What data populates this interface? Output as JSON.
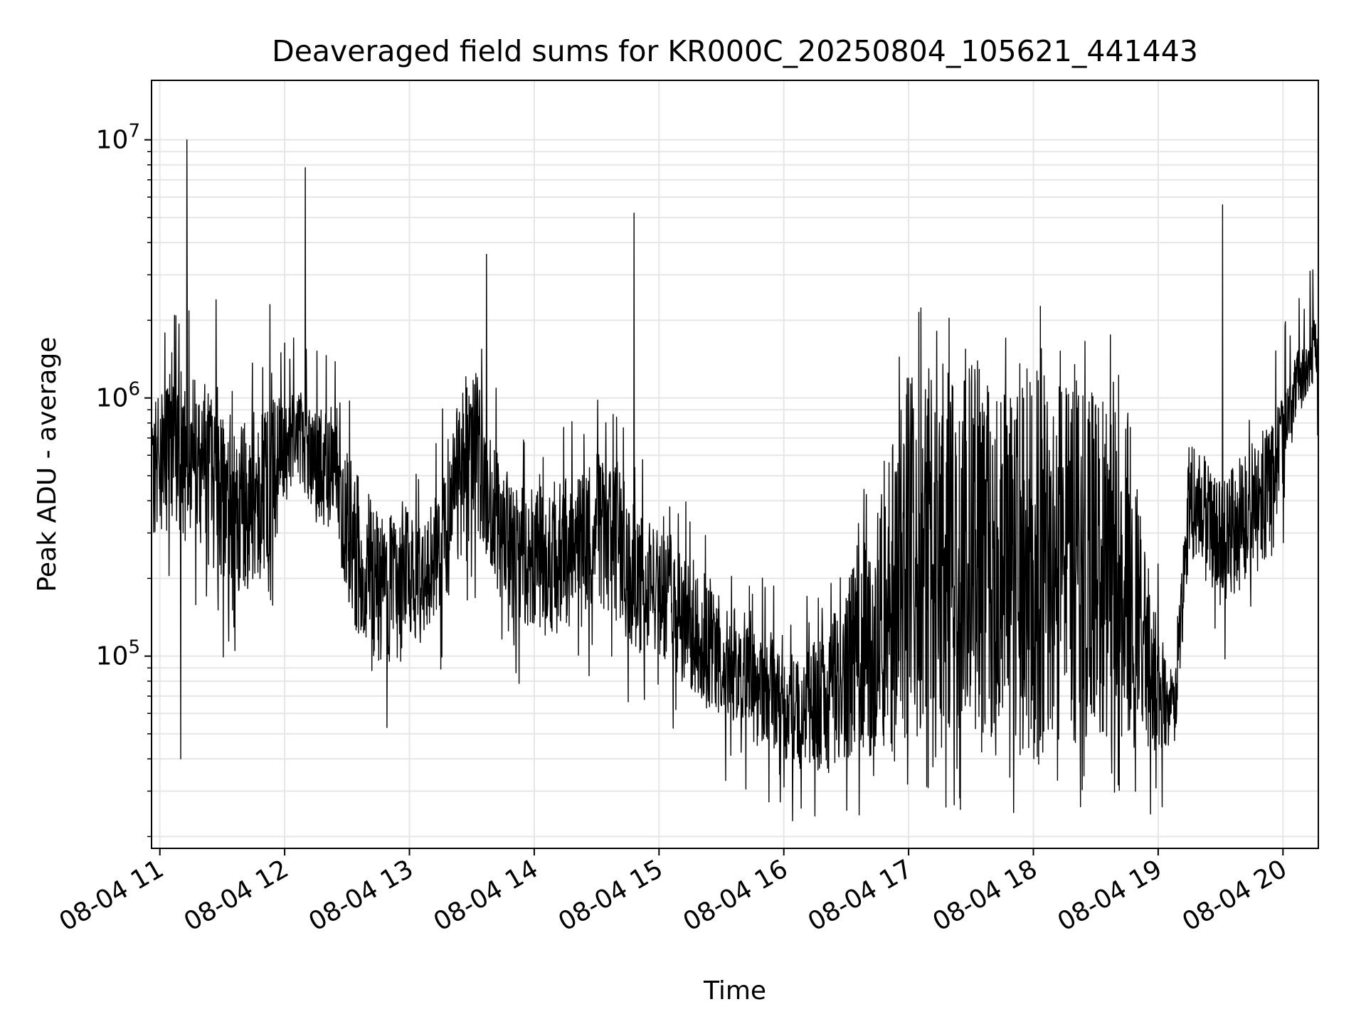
{
  "chart_data": {
    "type": "line",
    "title": "Deaveraged field sums for KR000C_20250804_105621_441443",
    "xlabel": "Time",
    "ylabel": "Peak ADU - average",
    "yscale": "log",
    "ylim": [
      18000,
      17000000
    ],
    "xlim": [
      "2025-08-04 10:56",
      "2025-08-04 20:17"
    ],
    "x_ticks": [
      {
        "t": "2025-08-04 11:00",
        "label": "08-04 11"
      },
      {
        "t": "2025-08-04 12:00",
        "label": "08-04 12"
      },
      {
        "t": "2025-08-04 13:00",
        "label": "08-04 13"
      },
      {
        "t": "2025-08-04 14:00",
        "label": "08-04 14"
      },
      {
        "t": "2025-08-04 15:00",
        "label": "08-04 15"
      },
      {
        "t": "2025-08-04 16:00",
        "label": "08-04 16"
      },
      {
        "t": "2025-08-04 17:00",
        "label": "08-04 17"
      },
      {
        "t": "2025-08-04 18:00",
        "label": "08-04 18"
      },
      {
        "t": "2025-08-04 19:00",
        "label": "08-04 19"
      },
      {
        "t": "2025-08-04 20:00",
        "label": "08-04 20"
      }
    ],
    "y_ticks": [
      {
        "value": 100000,
        "base": "10",
        "exp": "5"
      },
      {
        "value": 1000000,
        "base": "10",
        "exp": "6"
      },
      {
        "value": 10000000,
        "base": "10",
        "exp": "7"
      }
    ],
    "grid": true,
    "line_color": "#000000",
    "grid_color": "#e6e6e6",
    "series": [
      {
        "name": "",
        "profile": [
          {
            "t": "2025-08-04 10:56",
            "low": 300000,
            "high": 900000
          },
          {
            "t": "2025-08-04 11:05",
            "low": 300000,
            "high": 1300000
          },
          {
            "t": "2025-08-04 11:20",
            "low": 250000,
            "high": 1200000
          },
          {
            "t": "2025-08-04 11:35",
            "low": 150000,
            "high": 700000
          },
          {
            "t": "2025-08-04 11:50",
            "low": 200000,
            "high": 1000000
          },
          {
            "t": "2025-08-04 12:05",
            "low": 500000,
            "high": 1100000
          },
          {
            "t": "2025-08-04 12:25",
            "low": 250000,
            "high": 800000
          },
          {
            "t": "2025-08-04 12:40",
            "low": 80000,
            "high": 400000
          },
          {
            "t": "2025-08-04 12:55",
            "low": 100000,
            "high": 350000
          },
          {
            "t": "2025-08-04 13:10",
            "low": 120000,
            "high": 400000
          },
          {
            "t": "2025-08-04 13:30",
            "low": 300000,
            "high": 1500000
          },
          {
            "t": "2025-08-04 13:45",
            "low": 150000,
            "high": 500000
          },
          {
            "t": "2025-08-04 14:00",
            "low": 120000,
            "high": 450000
          },
          {
            "t": "2025-08-04 14:20",
            "low": 120000,
            "high": 500000
          },
          {
            "t": "2025-08-04 14:35",
            "low": 150000,
            "high": 700000
          },
          {
            "t": "2025-08-04 14:50",
            "low": 100000,
            "high": 350000
          },
          {
            "t": "2025-08-04 15:05",
            "low": 90000,
            "high": 300000
          },
          {
            "t": "2025-08-04 15:25",
            "low": 60000,
            "high": 200000
          },
          {
            "t": "2025-08-04 15:45",
            "low": 50000,
            "high": 130000
          },
          {
            "t": "2025-08-04 16:00",
            "low": 40000,
            "high": 100000
          },
          {
            "t": "2025-08-04 16:20",
            "low": 35000,
            "high": 120000
          },
          {
            "t": "2025-08-04 16:40",
            "low": 40000,
            "high": 300000
          },
          {
            "t": "2025-08-04 16:55",
            "low": 45000,
            "high": 800000
          },
          {
            "t": "2025-08-04 17:00",
            "low": 50000,
            "high": 1300000
          },
          {
            "t": "2025-08-04 17:30",
            "low": 40000,
            "high": 1400000
          },
          {
            "t": "2025-08-04 18:00",
            "low": 40000,
            "high": 1350000
          },
          {
            "t": "2025-08-04 18:20",
            "low": 45000,
            "high": 1200000
          },
          {
            "t": "2025-08-04 18:45",
            "low": 50000,
            "high": 1000000
          },
          {
            "t": "2025-08-04 18:55",
            "low": 40000,
            "high": 200000
          },
          {
            "t": "2025-08-04 19:08",
            "low": 45000,
            "high": 80000
          },
          {
            "t": "2025-08-04 19:15",
            "low": 250000,
            "high": 700000
          },
          {
            "t": "2025-08-04 19:30",
            "low": 150000,
            "high": 500000
          },
          {
            "t": "2025-08-04 19:45",
            "low": 200000,
            "high": 700000
          },
          {
            "t": "2025-08-04 19:55",
            "low": 250000,
            "high": 800000
          },
          {
            "t": "2025-08-04 20:05",
            "low": 800000,
            "high": 1400000
          },
          {
            "t": "2025-08-04 20:17",
            "low": 1200000,
            "high": 2200000
          }
        ],
        "peaks": [
          {
            "t": "2025-08-04 11:13",
            "value": 10000000
          },
          {
            "t": "2025-08-04 12:10",
            "value": 7800000
          },
          {
            "t": "2025-08-04 13:37",
            "value": 3600000
          },
          {
            "t": "2025-08-04 14:48",
            "value": 5200000
          },
          {
            "t": "2025-08-04 19:31",
            "value": 5600000
          },
          {
            "t": "2025-08-04 11:27",
            "value": 2400000
          },
          {
            "t": "2025-08-04 11:53",
            "value": 2300000
          },
          {
            "t": "2025-08-04 20:13",
            "value": 3100000
          },
          {
            "t": "2025-08-04 11:10",
            "value": 40000
          },
          {
            "t": "2025-08-04 16:15",
            "value": 24000
          },
          {
            "t": "2025-08-04 17:18",
            "value": 26000
          }
        ]
      }
    ]
  }
}
